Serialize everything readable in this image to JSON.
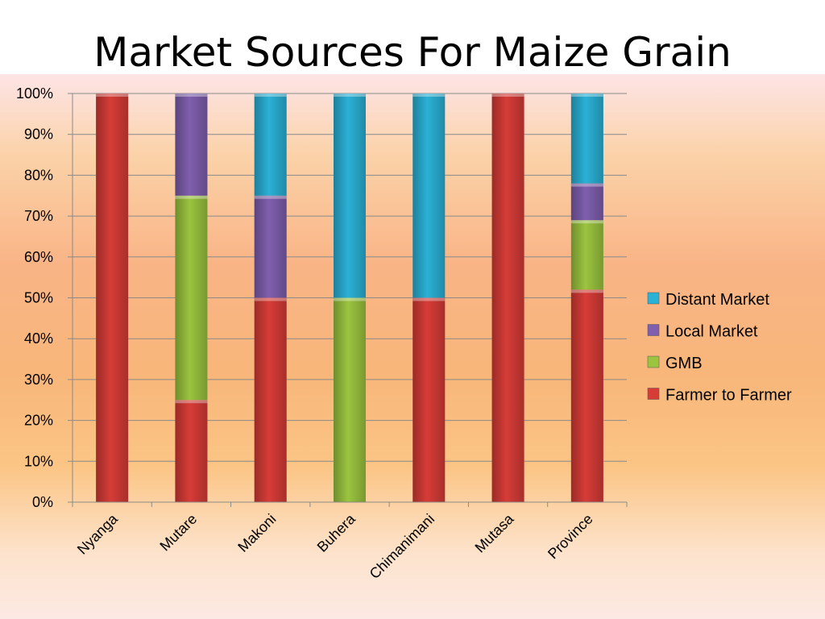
{
  "chart_data": {
    "type": "bar",
    "stacked": true,
    "title": "Market Sources For Maize Grain",
    "xlabel": "",
    "ylabel": "",
    "ylim": [
      0,
      100
    ],
    "y_ticks": [
      "0%",
      "10%",
      "20%",
      "30%",
      "40%",
      "50%",
      "60%",
      "70%",
      "80%",
      "90%",
      "100%"
    ],
    "categories": [
      "Nyanga",
      "Mutare",
      "Makoni",
      "Buhera",
      "Chimanimani",
      "Mutasa",
      "Province"
    ],
    "series": [
      {
        "name": "Farmer to Farmer",
        "color": "#d73c37",
        "values": [
          100,
          25,
          50,
          0,
          50,
          100,
          52
        ]
      },
      {
        "name": "GMB",
        "color": "#9bc43f",
        "values": [
          0,
          50,
          0,
          50,
          0,
          0,
          17
        ]
      },
      {
        "name": "Local Market",
        "color": "#7f5fae",
        "values": [
          0,
          25,
          25,
          0,
          0,
          0,
          9
        ]
      },
      {
        "name": "Distant Market",
        "color": "#2ab1d6",
        "values": [
          0,
          0,
          25,
          50,
          50,
          0,
          22
        ]
      }
    ],
    "legend_position": "right",
    "legend_order": [
      "Distant Market",
      "Local Market",
      "GMB",
      "Farmer to Farmer"
    ],
    "grid": true
  }
}
